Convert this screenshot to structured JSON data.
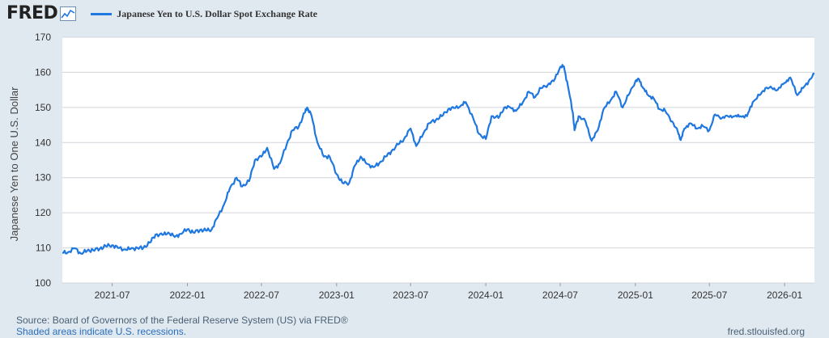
{
  "header": {
    "logo_text": "FRED",
    "logo_icon": "fred-chart-icon",
    "legend_label": "Japanese Yen to U.S. Dollar Spot Exchange Rate"
  },
  "colors": {
    "series": "#1f77e0",
    "background": "#e1e9f0",
    "plot": "#ffffff",
    "grid": "#d0d4da"
  },
  "chart_data": {
    "type": "line",
    "title": "",
    "ylabel": "Japanese Yen to One U.S. Dollar",
    "ylim": [
      100,
      170
    ],
    "yticks": [
      "100",
      "110",
      "120",
      "130",
      "140",
      "150",
      "160",
      "170"
    ],
    "xlim": [
      "2021-03-01",
      "2026-03-15"
    ],
    "xticks": [
      "2021-07",
      "2022-01",
      "2022-07",
      "2023-01",
      "2023-07",
      "2024-01",
      "2024-07",
      "2025-01",
      "2025-07",
      "2026-01"
    ],
    "grid": "horizontal",
    "legend_position": "top-left",
    "series": [
      {
        "name": "Japanese Yen to U.S. Dollar Spot Exchange Rate",
        "x": [
          "2021-03-01",
          "2021-03-15",
          "2021-04-01",
          "2021-04-15",
          "2021-05-01",
          "2021-05-15",
          "2021-06-01",
          "2021-06-15",
          "2021-07-01",
          "2021-07-15",
          "2021-08-01",
          "2021-08-15",
          "2021-09-01",
          "2021-09-15",
          "2021-10-01",
          "2021-10-15",
          "2021-11-01",
          "2021-11-15",
          "2021-12-01",
          "2021-12-15",
          "2022-01-01",
          "2022-01-15",
          "2022-02-01",
          "2022-02-15",
          "2022-03-01",
          "2022-03-15",
          "2022-04-01",
          "2022-04-15",
          "2022-05-01",
          "2022-05-15",
          "2022-06-01",
          "2022-06-15",
          "2022-07-01",
          "2022-07-15",
          "2022-08-01",
          "2022-08-15",
          "2022-09-01",
          "2022-09-15",
          "2022-10-01",
          "2022-10-15",
          "2022-10-21",
          "2022-11-01",
          "2022-11-15",
          "2022-12-01",
          "2022-12-15",
          "2023-01-01",
          "2023-01-15",
          "2023-02-01",
          "2023-02-15",
          "2023-03-01",
          "2023-03-15",
          "2023-04-01",
          "2023-04-15",
          "2023-05-01",
          "2023-05-15",
          "2023-06-01",
          "2023-06-15",
          "2023-07-01",
          "2023-07-15",
          "2023-08-01",
          "2023-08-15",
          "2023-09-01",
          "2023-09-15",
          "2023-10-01",
          "2023-10-15",
          "2023-11-01",
          "2023-11-13",
          "2023-12-01",
          "2023-12-15",
          "2024-01-01",
          "2024-01-15",
          "2024-02-01",
          "2024-02-15",
          "2024-03-01",
          "2024-03-15",
          "2024-04-01",
          "2024-04-15",
          "2024-05-01",
          "2024-05-15",
          "2024-06-01",
          "2024-06-15",
          "2024-07-01",
          "2024-07-10",
          "2024-07-20",
          "2024-08-01",
          "2024-08-05",
          "2024-08-15",
          "2024-09-01",
          "2024-09-16",
          "2024-10-01",
          "2024-10-15",
          "2024-11-01",
          "2024-11-15",
          "2024-12-01",
          "2024-12-15",
          "2025-01-01",
          "2025-01-10",
          "2025-01-20",
          "2025-02-01",
          "2025-02-15",
          "2025-03-01",
          "2025-03-15",
          "2025-04-01",
          "2025-04-15",
          "2025-04-22",
          "2025-05-01",
          "2025-05-15",
          "2025-06-01",
          "2025-06-15",
          "2025-07-01",
          "2025-07-15",
          "2025-08-01",
          "2025-08-15",
          "2025-09-01",
          "2025-09-15",
          "2025-10-01",
          "2025-10-15",
          "2025-11-01",
          "2025-11-15",
          "2025-12-01",
          "2025-12-15",
          "2026-01-01",
          "2026-01-15",
          "2026-02-01",
          "2026-02-15",
          "2026-03-01",
          "2026-03-15"
        ],
        "values": [
          108.6,
          108.8,
          109.9,
          108.4,
          109.2,
          109.4,
          109.8,
          110.5,
          110.8,
          110.0,
          109.6,
          109.7,
          110.0,
          110.0,
          111.5,
          113.8,
          113.7,
          114.4,
          113.1,
          114.0,
          115.3,
          114.4,
          115.1,
          115.0,
          115.2,
          118.5,
          122.5,
          127.0,
          130.0,
          127.5,
          129.0,
          135.0,
          136.0,
          138.5,
          132.5,
          134.0,
          139.5,
          143.5,
          144.7,
          148.5,
          150.0,
          147.5,
          140.0,
          136.0,
          136.0,
          131.0,
          128.5,
          128.5,
          133.5,
          136.0,
          134.0,
          133.0,
          134.0,
          136.0,
          137.5,
          139.5,
          141.0,
          144.0,
          139.0,
          142.5,
          145.5,
          146.5,
          147.5,
          149.5,
          149.8,
          150.5,
          151.5,
          147.0,
          142.5,
          141.0,
          147.5,
          147.0,
          150.0,
          150.0,
          149.0,
          151.5,
          154.5,
          153.0,
          155.5,
          156.5,
          157.5,
          161.5,
          161.7,
          156.0,
          148.5,
          143.5,
          147.5,
          146.0,
          140.5,
          143.5,
          149.5,
          152.0,
          154.5,
          150.0,
          153.5,
          157.5,
          158.0,
          155.5,
          153.5,
          152.5,
          149.5,
          149.0,
          146.0,
          143.0,
          140.7,
          144.0,
          145.5,
          144.0,
          144.7,
          143.5,
          148.0,
          147.0,
          147.5,
          147.5,
          147.5,
          147.5,
          151.5,
          153.5,
          155.5,
          155.5,
          155.0,
          157.0,
          158.5,
          153.5,
          155.5,
          157.5,
          159.5
        ]
      }
    ]
  },
  "footer": {
    "source": "Source: Board of Governors of the Federal Reserve System (US) via FRED®",
    "recessions": "Shaded areas indicate U.S. recessions.",
    "site": "fred.stlouisfed.org"
  }
}
